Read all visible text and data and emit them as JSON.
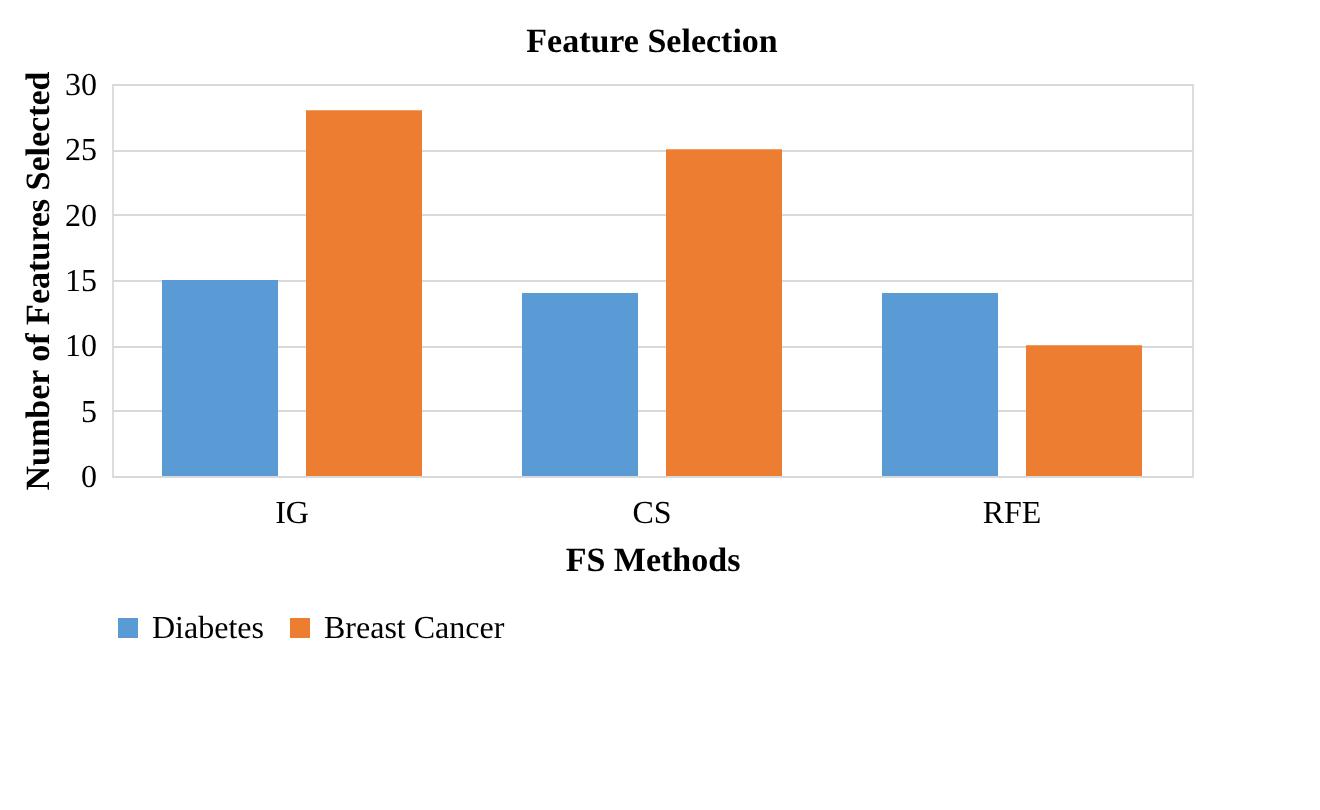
{
  "chart_data": {
    "type": "bar",
    "title": "Feature Selection",
    "xlabel": "FS Methods",
    "ylabel": "Number of Features Selected",
    "categories": [
      "IG",
      "CS",
      "RFE"
    ],
    "series": [
      {
        "name": "Diabetes",
        "color": "#5b9bd5",
        "values": [
          15,
          14,
          14
        ]
      },
      {
        "name": "Breast Cancer",
        "color": "#ed7d31",
        "values": [
          28,
          25,
          10
        ]
      }
    ],
    "ylim": [
      0,
      30
    ],
    "yticks": [
      0,
      5,
      10,
      15,
      20,
      25,
      30
    ],
    "grid": "y",
    "legend": "bottom"
  }
}
